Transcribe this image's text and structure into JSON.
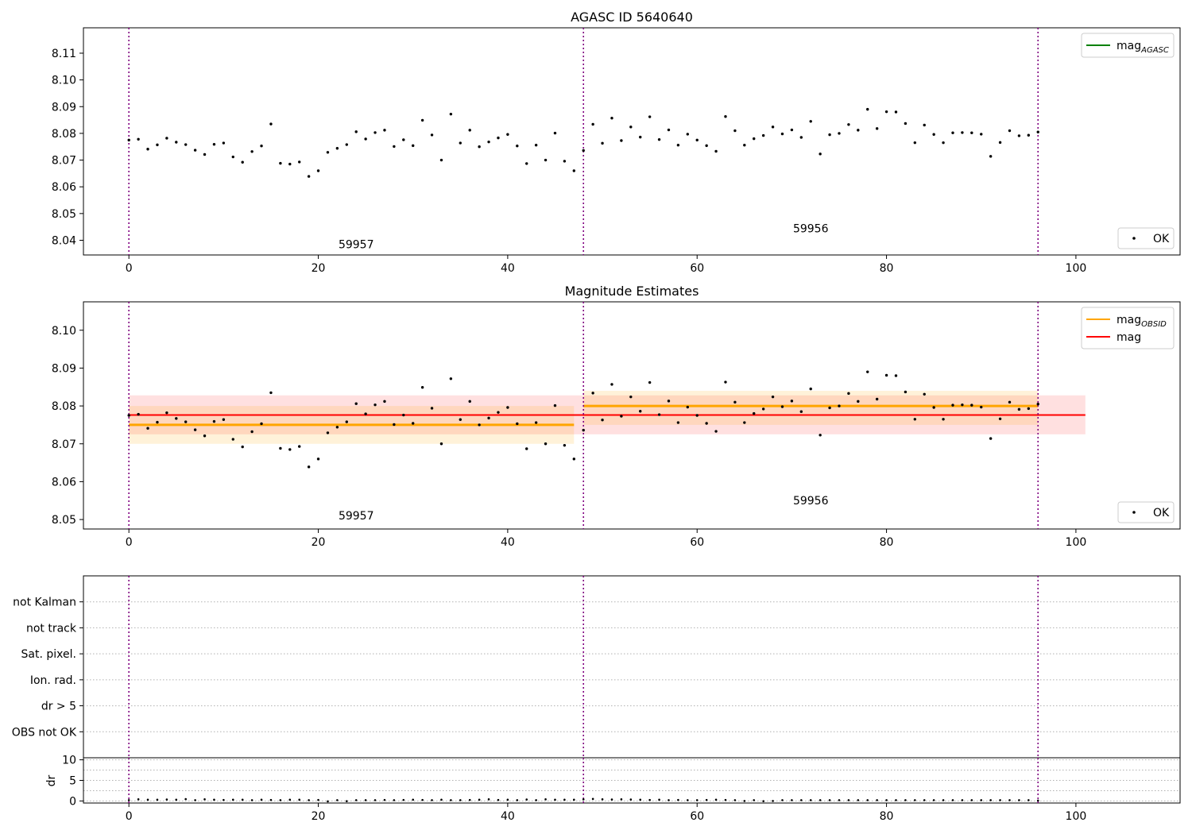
{
  "chart_data": [
    {
      "type": "scatter",
      "title": "AGASC ID 5640640",
      "xlim": [
        -4.8,
        111.0
      ],
      "ylim": [
        8.0345,
        8.1195
      ],
      "xticks": [
        0,
        20,
        40,
        60,
        80,
        100
      ],
      "yticks": [
        8.04,
        8.05,
        8.06,
        8.07,
        8.08,
        8.09,
        8.1,
        8.11
      ],
      "vlines": [
        0,
        48,
        96
      ],
      "annotations": [
        {
          "text": "59957",
          "x": 24,
          "y": 8.037
        },
        {
          "text": "59956",
          "x": 72,
          "y": 8.043
        }
      ],
      "legend_upper": {
        "position": "upper right",
        "entries": [
          {
            "label": "mag",
            "sub": "AGASC",
            "color": "#008000"
          }
        ]
      },
      "legend_lower": {
        "position": "lower right",
        "entries": [
          {
            "label": "OK",
            "marker": "point"
          }
        ]
      },
      "series": [
        {
          "name": "OK",
          "x": [
            0,
            1,
            2,
            3,
            4,
            5,
            6,
            7,
            8,
            9,
            10,
            11,
            12,
            13,
            14,
            15,
            16,
            17,
            18,
            19,
            20,
            21,
            22,
            23,
            24,
            25,
            26,
            27,
            28,
            29,
            30,
            31,
            32,
            33,
            34,
            35,
            36,
            37,
            38,
            39,
            40,
            41,
            42,
            43,
            44,
            45,
            46,
            47,
            48,
            49,
            50,
            51,
            52,
            53,
            54,
            55,
            56,
            57,
            58,
            59,
            60,
            61,
            62,
            63,
            64,
            65,
            66,
            67,
            68,
            69,
            70,
            71,
            72,
            73,
            74,
            75,
            76,
            77,
            78,
            79,
            80,
            81,
            82,
            83,
            84,
            85,
            86,
            87,
            88,
            89,
            90,
            91,
            92,
            93,
            94,
            95,
            96
          ],
          "y": [
            8.0775,
            8.0778,
            8.0741,
            8.0757,
            8.0782,
            8.0767,
            8.0758,
            8.0737,
            8.0721,
            8.0759,
            8.0764,
            8.0712,
            8.0692,
            8.0732,
            8.0753,
            8.0835,
            8.0688,
            8.0685,
            8.0693,
            8.0639,
            8.066,
            8.0729,
            8.0744,
            8.0758,
            8.0806,
            8.0779,
            8.0803,
            8.0812,
            8.0751,
            8.0776,
            8.0754,
            8.0849,
            8.0794,
            8.07,
            8.0872,
            8.0764,
            8.0812,
            8.075,
            8.0768,
            8.0783,
            8.0796,
            8.0753,
            8.0687,
            8.0756,
            8.07,
            8.0801,
            8.0696,
            8.066,
            8.0736,
            8.0834,
            8.0763,
            8.0857,
            8.0773,
            8.0824,
            8.0786,
            8.0862,
            8.0777,
            8.0813,
            8.0756,
            8.0797,
            8.0775,
            8.0754,
            8.0733,
            8.0863,
            8.081,
            8.0756,
            8.078,
            8.0792,
            8.0824,
            8.0798,
            8.0813,
            8.0785,
            8.0845,
            8.0723,
            8.0795,
            8.08,
            8.0833,
            8.0812,
            8.089,
            8.0818,
            8.0881,
            8.088,
            8.0837,
            8.0765,
            8.0831,
            8.0796,
            8.0765,
            8.0802,
            8.0803,
            8.0802,
            8.0797,
            8.0714,
            8.0766,
            8.081,
            8.0791,
            8.0793,
            8.0805
          ]
        }
      ]
    },
    {
      "type": "scatter",
      "title": "Magnitude Estimates",
      "xlim": [
        -4.8,
        111.0
      ],
      "ylim": [
        8.0475,
        8.1075
      ],
      "xticks": [
        0,
        20,
        40,
        60,
        80,
        100
      ],
      "yticks": [
        8.05,
        8.06,
        8.07,
        8.08,
        8.09,
        8.1
      ],
      "vlines": [
        0,
        48,
        96
      ],
      "annotations": [
        {
          "text": "59957",
          "x": 24,
          "y": 8.05
        },
        {
          "text": "59956",
          "x": 72,
          "y": 8.054
        }
      ],
      "legend_upper": {
        "position": "upper right",
        "entries": [
          {
            "label": "mag",
            "sub": "OBSID",
            "color": "#ffa500"
          },
          {
            "label": "mag",
            "sub": "",
            "color": "#ff0000"
          }
        ]
      },
      "legend_lower": {
        "position": "lower right",
        "entries": [
          {
            "label": "OK",
            "marker": "point"
          }
        ]
      },
      "mag_agasc": {
        "value": 8.0776,
        "band": [
          8.0725,
          8.0828
        ],
        "x_range": [
          0,
          101
        ],
        "color": "#ff0000"
      },
      "mag_obsid": [
        {
          "obsid": "59957",
          "x_range": [
            0,
            47
          ],
          "value": 8.075,
          "band": [
            8.07,
            8.08
          ],
          "color": "#ffa500"
        },
        {
          "obsid": "59956",
          "x_range": [
            48,
            96
          ],
          "value": 8.08,
          "band": [
            8.075,
            8.084
          ],
          "color": "#ffa500"
        }
      ],
      "series": [
        {
          "name": "OK",
          "same_as_panel": 0
        }
      ]
    },
    {
      "type": "scatter",
      "title": "",
      "xlim": [
        -4.8,
        111.0
      ],
      "flag_labels": [
        "not Kalman",
        "not track",
        "Sat. pixel.",
        "Ion. rad.",
        "dr > 5",
        "OBS not OK"
      ],
      "vlines": [
        0,
        48,
        96
      ]
    },
    {
      "type": "scatter",
      "title": "",
      "ylabel": "dr",
      "xlim": [
        -4.8,
        111.0
      ],
      "ylim": [
        -0.5,
        10.5
      ],
      "xticks": [
        0,
        20,
        40,
        60,
        80,
        100
      ],
      "yticks": [
        0,
        5,
        10
      ],
      "gridlines_y": [
        0,
        2.5,
        5,
        7.5,
        10
      ],
      "vlines": [
        0,
        48,
        96
      ],
      "series": [
        {
          "name": "dr",
          "x": [
            0,
            1,
            2,
            3,
            4,
            5,
            6,
            7,
            8,
            9,
            10,
            11,
            12,
            13,
            14,
            15,
            16,
            17,
            18,
            19,
            20,
            21,
            22,
            23,
            24,
            25,
            26,
            27,
            28,
            29,
            30,
            31,
            32,
            33,
            34,
            35,
            36,
            37,
            38,
            39,
            40,
            41,
            42,
            43,
            44,
            45,
            46,
            47,
            48,
            49,
            50,
            51,
            52,
            53,
            54,
            55,
            56,
            57,
            58,
            59,
            60,
            61,
            62,
            63,
            64,
            65,
            66,
            67,
            68,
            69,
            70,
            71,
            72,
            73,
            74,
            75,
            76,
            77,
            78,
            79,
            80,
            81,
            82,
            83,
            84,
            85,
            86,
            87,
            88,
            89,
            90,
            91,
            92,
            93,
            94,
            95,
            96
          ],
          "y": [
            0.2,
            0.4,
            0.3,
            0.3,
            0.35,
            0.3,
            0.45,
            0.2,
            0.4,
            0.3,
            0.25,
            0.3,
            0.3,
            0.2,
            0.3,
            0.25,
            0.2,
            0.3,
            0.3,
            0.2,
            0.25,
            -0.1,
            0.2,
            -0.05,
            0.2,
            0.2,
            0.2,
            0.25,
            0.2,
            0.25,
            0.3,
            0.25,
            0.2,
            0.3,
            0.2,
            0.2,
            0.25,
            0.3,
            0.4,
            0.25,
            0.3,
            0.2,
            0.35,
            0.2,
            0.4,
            0.3,
            0.3,
            0.3,
            0.4,
            0.5,
            0.4,
            0.35,
            0.4,
            0.35,
            0.3,
            0.25,
            0.3,
            0.2,
            0.25,
            0.2,
            0.2,
            0.25,
            0.3,
            0.25,
            0.2,
            0.0,
            0.2,
            -0.05,
            0.0,
            0.2,
            0.2,
            0.2,
            0.2,
            0.2,
            0.2,
            0.2,
            0.2,
            0.2,
            0.2,
            0.2,
            0.2,
            0.2,
            0.2,
            0.2,
            0.2,
            0.2,
            0.2,
            0.2,
            0.2,
            0.2,
            0.2,
            0.2,
            0.2,
            0.2,
            0.2,
            0.2,
            0.1
          ]
        }
      ]
    }
  ],
  "colors": {
    "vline": "#800080",
    "points": "#000000",
    "mag_agasc_line": "#008000",
    "mag_obsid_line": "#ffa500",
    "mag_line": "#ff0000",
    "grid": "#b0b0b0"
  }
}
